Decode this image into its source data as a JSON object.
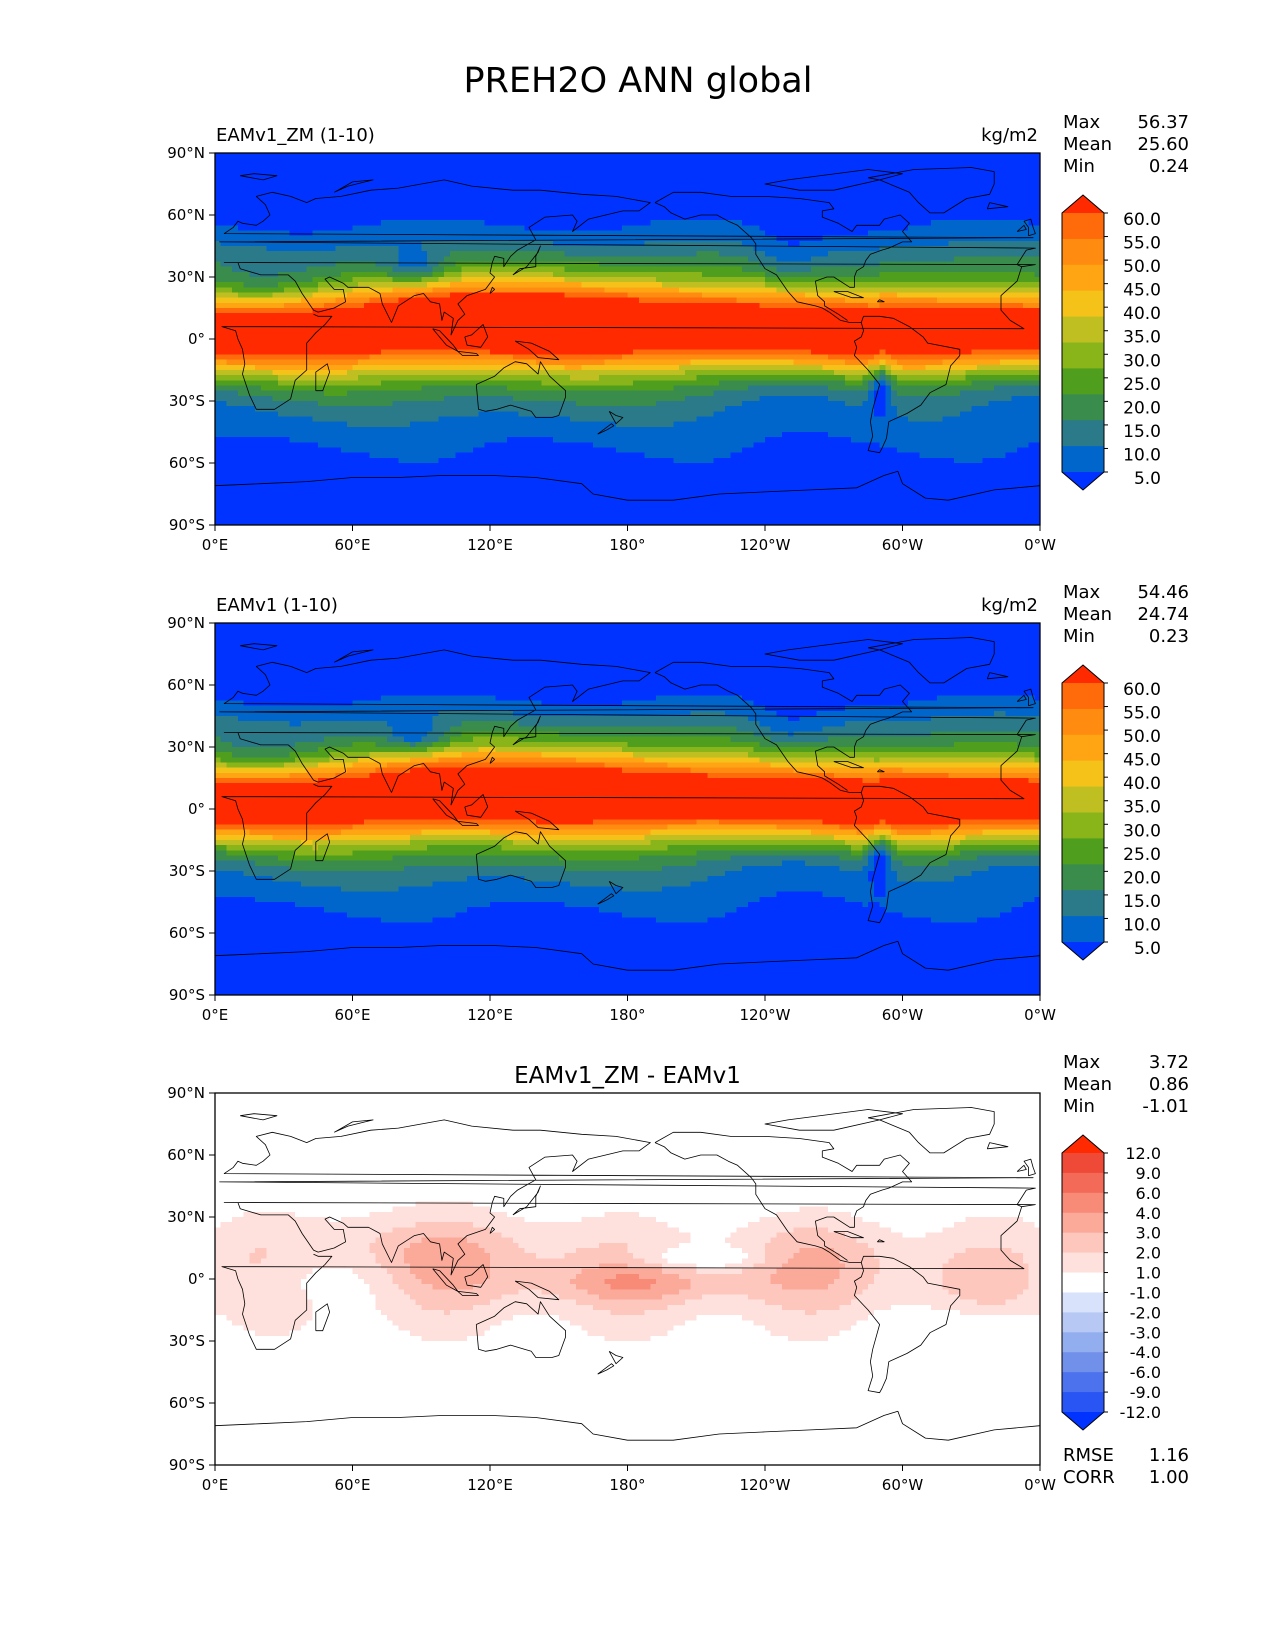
{
  "figure_title": "PREH2O ANN global",
  "lat_ticks": [
    "90°N",
    "60°N",
    "30°N",
    "0°",
    "30°S",
    "60°S",
    "90°S"
  ],
  "lon_ticks": [
    "0°E",
    "60°E",
    "120°E",
    "180°",
    "120°W",
    "60°W",
    "0°W"
  ],
  "colors": {
    "field_levels": [
      "#0033ff",
      "#0066cc",
      "#2a7a8a",
      "#3a8c4c",
      "#4f9e1e",
      "#89b51a",
      "#c0bf22",
      "#f5c21a",
      "#ffa514",
      "#ff8b10",
      "#ff6a0a",
      "#ff2a00"
    ],
    "diff_levels": [
      "#0033ff",
      "#2a55f5",
      "#4d72ee",
      "#7090ea",
      "#93aeee",
      "#b6c8f3",
      "#d8e2fb",
      "#ffffff",
      "#fee1dc",
      "#fdc7bd",
      "#fba999",
      "#f88b78",
      "#f36a58",
      "#ef4a38",
      "#ff2a00"
    ],
    "coastline": "#000000"
  },
  "chart_data": [
    {
      "type": "heatmap",
      "left_title": "EAMv1_ZM (1-10)",
      "units": "kg/m2",
      "stats": [
        {
          "label": "Max",
          "value": "56.37"
        },
        {
          "label": "Mean",
          "value": "25.60"
        },
        {
          "label": "Min",
          "value": "0.24"
        }
      ],
      "levels": [
        5,
        10,
        15,
        20,
        25,
        30,
        35,
        40,
        45,
        50,
        55,
        60
      ],
      "level_labels": [
        "60.0",
        "55.0",
        "50.0",
        "45.0",
        "40.0",
        "35.0",
        "30.0",
        "25.0",
        "20.0",
        "15.0",
        "10.0",
        "5.0"
      ],
      "xlim": [
        0,
        360
      ],
      "ylim": [
        -90,
        90
      ]
    },
    {
      "type": "heatmap",
      "left_title": "EAMv1 (1-10)",
      "units": "kg/m2",
      "stats": [
        {
          "label": "Max",
          "value": "54.46"
        },
        {
          "label": "Mean",
          "value": "24.74"
        },
        {
          "label": "Min",
          "value": "0.23"
        }
      ],
      "levels": [
        5,
        10,
        15,
        20,
        25,
        30,
        35,
        40,
        45,
        50,
        55,
        60
      ],
      "level_labels": [
        "60.0",
        "55.0",
        "50.0",
        "45.0",
        "40.0",
        "35.0",
        "30.0",
        "25.0",
        "20.0",
        "15.0",
        "10.0",
        "5.0"
      ],
      "xlim": [
        0,
        360
      ],
      "ylim": [
        -90,
        90
      ]
    },
    {
      "type": "heatmap",
      "center_title": "EAMv1_ZM - EAMv1",
      "stats": [
        {
          "label": "Max",
          "value": "3.72"
        },
        {
          "label": "Mean",
          "value": "0.86"
        },
        {
          "label": "Min",
          "value": "-1.01"
        }
      ],
      "levels": [
        -12,
        -9,
        -6,
        -4,
        -3,
        -2,
        -1,
        1,
        2,
        3,
        4,
        6,
        9,
        12
      ],
      "level_labels": [
        "12.0",
        "9.0",
        "6.0",
        "4.0",
        "3.0",
        "2.0",
        "1.0",
        "-1.0",
        "-2.0",
        "-3.0",
        "-4.0",
        "-6.0",
        "-9.0",
        "-12.0"
      ],
      "metrics": [
        {
          "label": "RMSE",
          "value": "1.16"
        },
        {
          "label": "CORR",
          "value": "1.00"
        }
      ],
      "xlim": [
        0,
        360
      ],
      "ylim": [
        -90,
        90
      ]
    }
  ]
}
